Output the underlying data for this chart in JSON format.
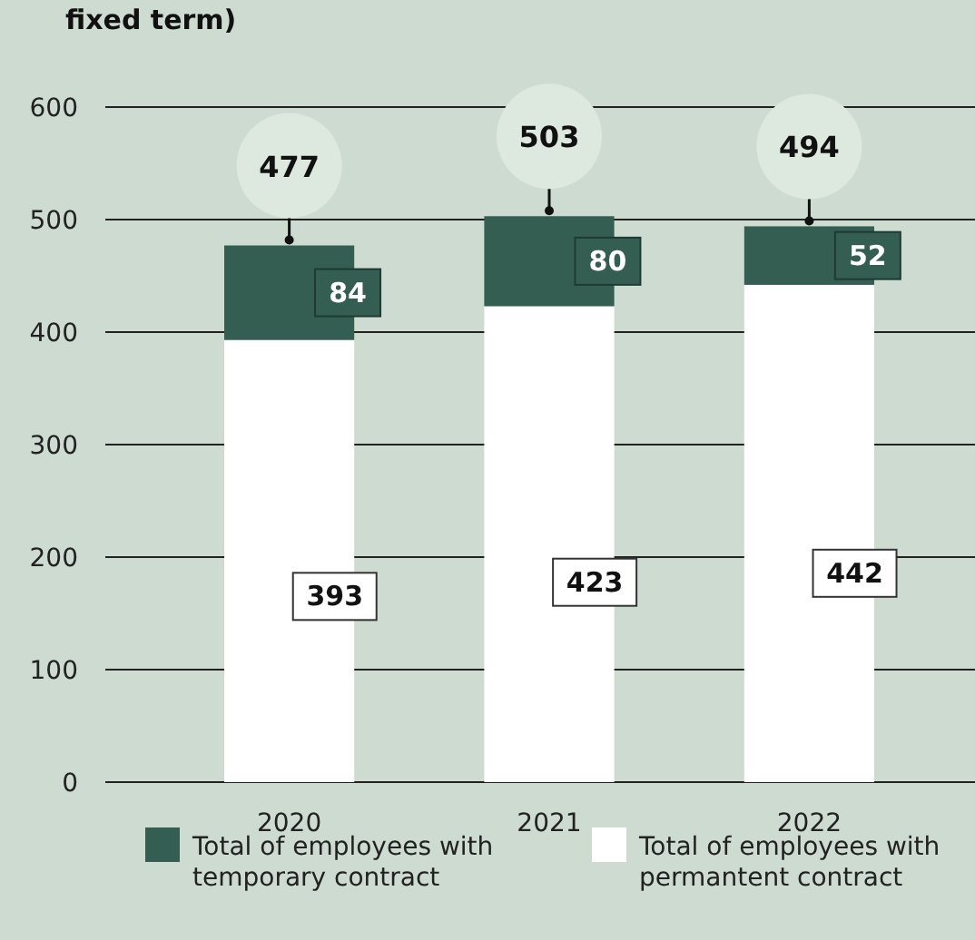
{
  "chart_data": {
    "type": "bar",
    "title": "fixed term)",
    "categories": [
      "2020",
      "2021",
      "2022"
    ],
    "stacked": true,
    "series": [
      {
        "name": "Total of employees with permantent contract",
        "color": "#ffffff",
        "values": [
          393,
          423,
          442
        ]
      },
      {
        "name": "Total of employees with temporary contract",
        "color": "#355e52",
        "values": [
          84,
          80,
          52
        ]
      }
    ],
    "ylim": [
      0,
      600
    ],
    "yticks": [
      0,
      100,
      200,
      300,
      400,
      500,
      600
    ],
    "grid": "y",
    "legend": "bottom",
    "data_labels": true,
    "totals": [
      "477",
      "503",
      "494"
    ]
  }
}
